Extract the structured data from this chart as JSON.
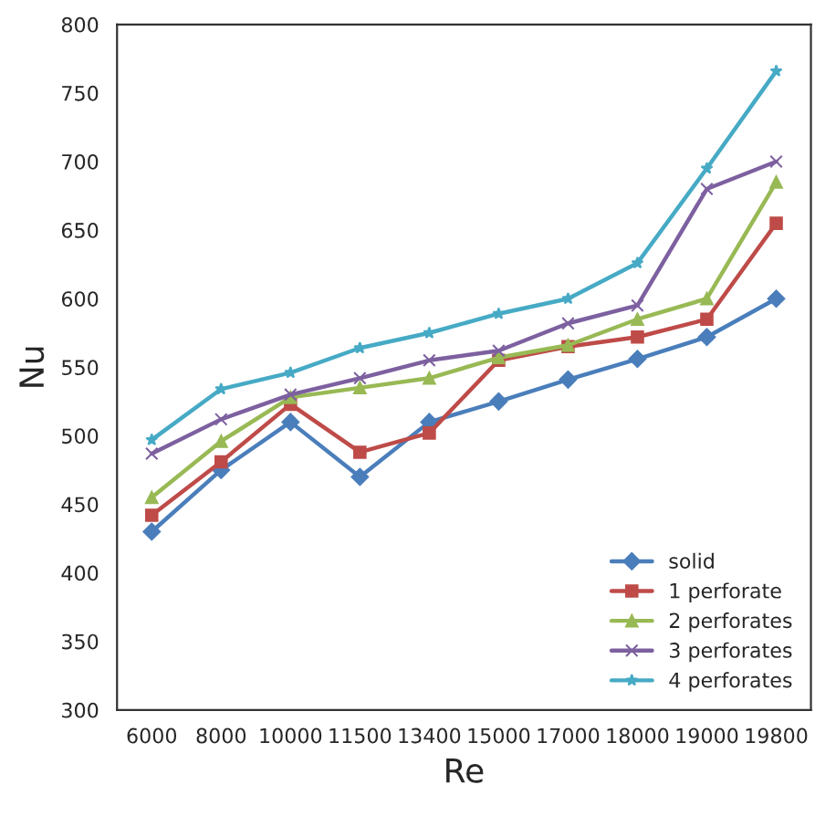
{
  "chart_data": {
    "type": "line",
    "xlabel": "Re",
    "ylabel": "Nu",
    "categories": [
      "6000",
      "8000",
      "10000",
      "11500",
      "13400",
      "15000",
      "17000",
      "18000",
      "19000",
      "19800"
    ],
    "series": [
      {
        "name": "solid",
        "color": "#4a7ebb",
        "marker": "diamond",
        "values": [
          430,
          475,
          510,
          470,
          510,
          525,
          541,
          556,
          572,
          600
        ]
      },
      {
        "name": "1 perforate",
        "color": "#be4b48",
        "marker": "square",
        "values": [
          442,
          481,
          523,
          488,
          502,
          555,
          565,
          572,
          585,
          655
        ]
      },
      {
        "name": "2 perforates",
        "color": "#98b954",
        "marker": "triangle",
        "values": [
          455,
          496,
          528,
          535,
          542,
          557,
          566,
          585,
          600,
          685
        ]
      },
      {
        "name": "3 perforates",
        "color": "#7d60a0",
        "marker": "cross",
        "values": [
          487,
          512,
          530,
          542,
          555,
          562,
          582,
          595,
          680,
          700
        ]
      },
      {
        "name": "4 perforates",
        "color": "#46aac5",
        "marker": "star",
        "values": [
          497,
          534,
          546,
          564,
          575,
          589,
          600,
          626,
          695,
          766
        ]
      }
    ],
    "ylim": [
      300,
      800
    ],
    "yticks": [
      300,
      350,
      400,
      450,
      500,
      550,
      600,
      650,
      700,
      750,
      800
    ],
    "grid": false,
    "legend": "bottom right"
  }
}
